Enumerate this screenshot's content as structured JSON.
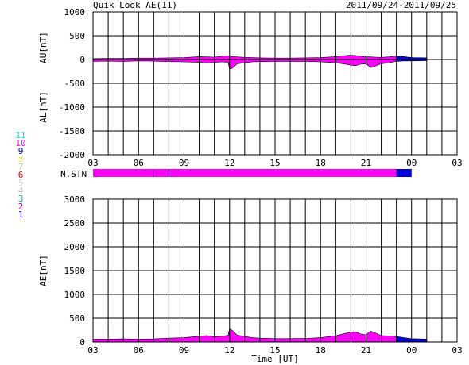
{
  "header": {
    "title": "Quik Look AE(11)",
    "date_range": "2011/09/24-2011/09/25"
  },
  "legend": {
    "items": [
      {
        "label": "11",
        "color": "#00e5e5"
      },
      {
        "label": "10",
        "color": "#ff00ff"
      },
      {
        "label": "9",
        "color": "#0000cc"
      },
      {
        "label": "8",
        "color": "#f0e060"
      },
      {
        "label": "7",
        "color": "#90e090"
      },
      {
        "label": "6",
        "color": "#e00000"
      },
      {
        "label": "5",
        "color": "#d0d0d0"
      },
      {
        "label": "4",
        "color": "#c0c0c0"
      },
      {
        "label": "3",
        "color": "#00b0b0"
      },
      {
        "label": "2",
        "color": "#b000b0"
      },
      {
        "label": "1",
        "color": "#0000cc"
      }
    ]
  },
  "colors": {
    "magenta": "#ff00ff",
    "blue": "#0000dd",
    "purple": "#8000c0"
  },
  "chart_data": [
    {
      "type": "area",
      "panel": "AU_AL",
      "ylabel_top": "AU[nT]",
      "ylabel_bottom": "AL[nT]",
      "ylim": [
        -2000,
        1000
      ],
      "yticks": [
        "1000",
        "500",
        "0",
        "-500",
        "-1000",
        "-1500",
        "-2000"
      ],
      "ytick_values": [
        1000,
        500,
        0,
        -500,
        -1000,
        -1500,
        -2000
      ],
      "xlim": [
        3,
        27
      ],
      "xtick_labels": [
        "03",
        "06",
        "09",
        "12",
        "15",
        "18",
        "21",
        "00",
        "03"
      ],
      "grid": true,
      "series": [
        {
          "x": [
            3,
            4,
            5,
            6,
            7,
            8,
            9,
            10,
            10.5,
            11,
            11.5,
            11.9,
            12,
            12.2,
            12.5,
            13,
            13.5,
            14,
            15,
            16,
            17,
            18,
            19,
            19.5,
            20,
            20.3,
            20.6,
            21,
            21.3,
            21.6,
            22,
            22.5,
            23,
            23.5,
            24,
            25
          ],
          "values": [
            20,
            25,
            25,
            30,
            30,
            35,
            40,
            60,
            55,
            50,
            70,
            80,
            75,
            60,
            55,
            45,
            40,
            35,
            30,
            30,
            35,
            40,
            60,
            80,
            90,
            85,
            70,
            60,
            55,
            50,
            45,
            55,
            75,
            60,
            40,
            35
          ]
        },
        {
          "x": [
            3,
            4,
            5,
            6,
            7,
            8,
            9,
            10,
            10.5,
            11,
            11.5,
            11.9,
            12,
            12.2,
            12.5,
            13,
            13.5,
            14,
            15,
            16,
            17,
            18,
            19,
            19.5,
            20,
            20.3,
            20.6,
            21,
            21.3,
            21.6,
            22,
            22.5,
            23,
            23.5,
            24,
            25
          ],
          "values": [
            -40,
            -35,
            -40,
            -30,
            -35,
            -45,
            -50,
            -60,
            -80,
            -60,
            -50,
            -60,
            -200,
            -180,
            -90,
            -70,
            -50,
            -45,
            -40,
            -40,
            -40,
            -50,
            -70,
            -90,
            -120,
            -130,
            -100,
            -90,
            -170,
            -140,
            -90,
            -70,
            -40,
            -30,
            -30,
            -25
          ]
        }
      ]
    },
    {
      "type": "bar",
      "panel": "N.STN",
      "label": "N.STN",
      "segments": [
        {
          "from": 3,
          "to": 7.0,
          "value": 10
        },
        {
          "from": 7.0,
          "to": 8.0,
          "value": 10
        },
        {
          "from": 8.0,
          "to": 23.0,
          "value": 10
        },
        {
          "from": 23.0,
          "to": 24.0,
          "value": 9
        }
      ]
    },
    {
      "type": "area",
      "panel": "AE",
      "ylabel": "AE[nT]",
      "xlabel": "Time [UT]",
      "ylim": [
        0,
        3000
      ],
      "yticks": [
        "3000",
        "2500",
        "2000",
        "1500",
        "1000",
        "500",
        "0"
      ],
      "ytick_values": [
        3000,
        2500,
        2000,
        1500,
        1000,
        500,
        0
      ],
      "xlim": [
        3,
        27
      ],
      "xtick_labels": [
        "03",
        "06",
        "09",
        "12",
        "15",
        "18",
        "21",
        "00",
        "03"
      ],
      "grid": true,
      "series": [
        {
          "x": [
            3,
            4,
            5,
            6,
            7,
            8,
            9,
            10,
            10.5,
            11,
            11.5,
            11.9,
            12,
            12.2,
            12.5,
            13,
            13.5,
            14,
            15,
            16,
            17,
            18,
            19,
            19.5,
            20,
            20.3,
            20.6,
            21,
            21.3,
            21.6,
            22,
            22.5,
            23,
            23.5,
            24,
            25
          ],
          "values": [
            60,
            60,
            65,
            60,
            65,
            80,
            90,
            120,
            135,
            110,
            120,
            140,
            275,
            240,
            145,
            115,
            90,
            80,
            70,
            70,
            75,
            90,
            130,
            170,
            210,
            215,
            170,
            150,
            225,
            190,
            135,
            125,
            115,
            90,
            70,
            60
          ]
        }
      ]
    }
  ]
}
